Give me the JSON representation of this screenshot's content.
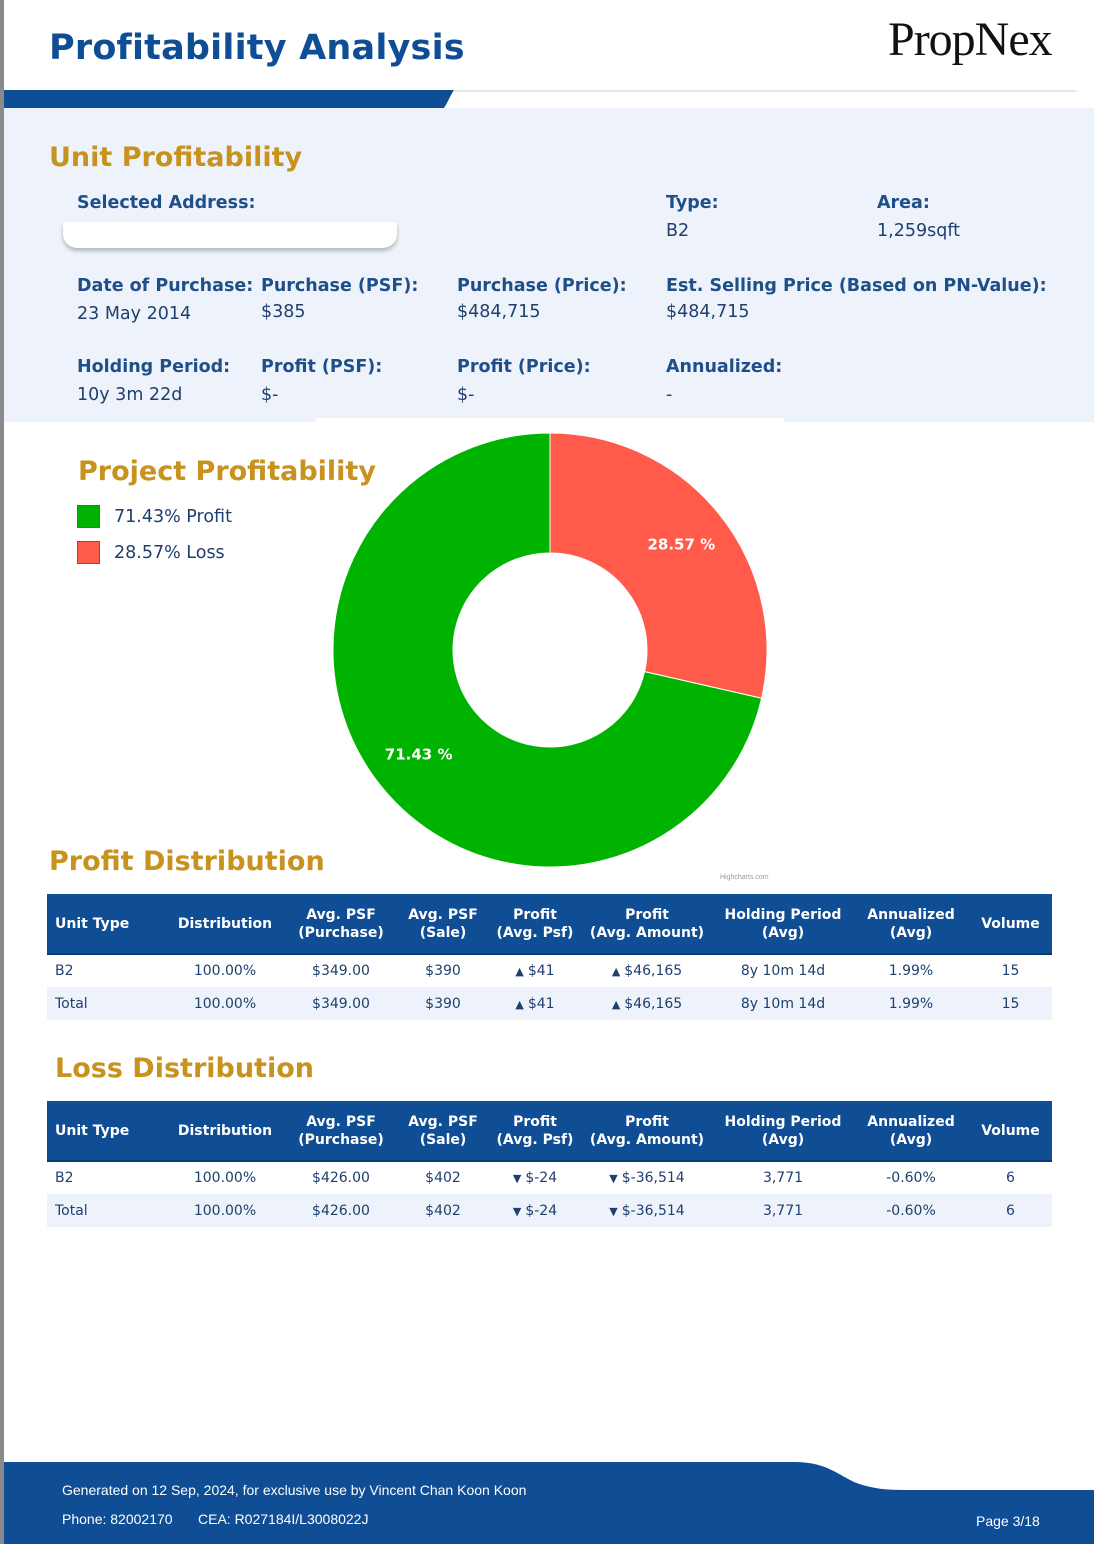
{
  "header": {
    "title": "Profitability Analysis",
    "logo_text": "PropNex"
  },
  "colors": {
    "brand_blue": "#0f4d95",
    "section_gold": "#c7921e",
    "profit_green": "#00b300",
    "loss_red": "#ff5a4a"
  },
  "unit": {
    "title": "Unit Profitability",
    "address_label": "Selected Address:",
    "address_value": "",
    "type_label": "Type:",
    "type_value": "B2",
    "area_label": "Area:",
    "area_value": "1,259sqft",
    "date_label": "Date of Purchase:",
    "date_value": "23 May 2014",
    "psf_label": "Purchase (PSF):",
    "psf_value": "$385",
    "price_label": "Purchase (Price):",
    "price_value": "$484,715",
    "est_label": "Est. Selling Price (Based on PN-Value):",
    "est_value": "$484,715",
    "holding_label": "Holding Period:",
    "holding_value": "10y 3m 22d",
    "profit_psf_label": "Profit (PSF):",
    "profit_psf_value": "$-",
    "profit_price_label": "Profit (Price):",
    "profit_price_value": "$-",
    "annualized_label": "Annualized:",
    "annualized_value": "-"
  },
  "project": {
    "title": "Project Profitability",
    "legend": [
      {
        "label": "71.43% Profit",
        "color": "#00b300"
      },
      {
        "label": "28.57% Loss",
        "color": "#ff5a4a"
      }
    ],
    "credits": "Highcharts.com"
  },
  "chart_data": {
    "type": "pie",
    "donut": true,
    "slices": [
      {
        "name": "Loss",
        "value": 28.57,
        "label": "28.57 %",
        "color": "#ff5a4a"
      },
      {
        "name": "Profit",
        "value": 71.43,
        "label": "71.43 %",
        "color": "#00b300"
      }
    ]
  },
  "profit_distribution": {
    "title": "Profit Distribution",
    "headers": [
      "Unit Type",
      "Distribution",
      "Avg. PSF\n(Purchase)",
      "Avg. PSF\n(Sale)",
      "Profit\n(Avg. Psf)",
      "Profit\n(Avg. Amount)",
      "Holding Period\n(Avg)",
      "Annualized\n(Avg)",
      "Volume"
    ],
    "rows": [
      {
        "unit_type": "B2",
        "distribution": "100.00%",
        "avg_psf_purchase": "$349.00",
        "avg_psf_sale": "$390",
        "profit_psf": "$41",
        "profit_amount": "$46,165",
        "holding": "8y 10m 14d",
        "annualized": "1.99%",
        "volume": "15"
      },
      {
        "unit_type": "Total",
        "distribution": "100.00%",
        "avg_psf_purchase": "$349.00",
        "avg_psf_sale": "$390",
        "profit_psf": "$41",
        "profit_amount": "$46,165",
        "holding": "8y 10m 14d",
        "annualized": "1.99%",
        "volume": "15"
      }
    ]
  },
  "loss_distribution": {
    "title": "Loss Distribution",
    "headers": [
      "Unit Type",
      "Distribution",
      "Avg. PSF\n(Purchase)",
      "Avg. PSF\n(Sale)",
      "Profit\n(Avg. Psf)",
      "Profit\n(Avg. Amount)",
      "Holding Period\n(Avg)",
      "Annualized\n(Avg)",
      "Volume"
    ],
    "rows": [
      {
        "unit_type": "B2",
        "distribution": "100.00%",
        "avg_psf_purchase": "$426.00",
        "avg_psf_sale": "$402",
        "profit_psf": "$-24",
        "profit_amount": "$-36,514",
        "holding": "3,771",
        "annualized": "-0.60%",
        "volume": "6"
      },
      {
        "unit_type": "Total",
        "distribution": "100.00%",
        "avg_psf_purchase": "$426.00",
        "avg_psf_sale": "$402",
        "profit_psf": "$-24",
        "profit_amount": "$-36,514",
        "holding": "3,771",
        "annualized": "-0.60%",
        "volume": "6"
      }
    ]
  },
  "footer": {
    "generated": "Generated on 12 Sep, 2024, for exclusive use by Vincent Chan Koon Koon",
    "phone": "Phone: 82002170",
    "cea": "CEA: R027184I/L3008022J",
    "page": "Page 3/18"
  }
}
